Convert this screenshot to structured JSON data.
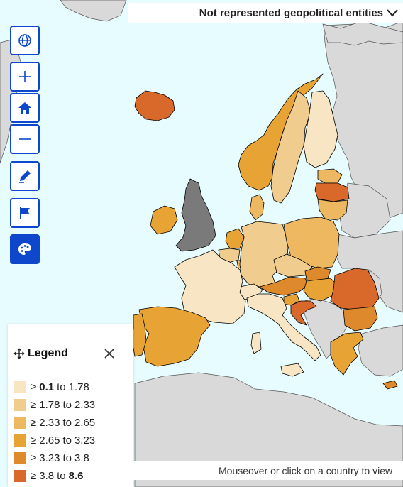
{
  "header": {
    "label": "Not represented geopolitical entities",
    "chevron_icon": "chevron-down-icon"
  },
  "toolbar": [
    {
      "id": "globe",
      "icon": "globe-icon",
      "filled": false
    },
    {
      "id": "zoom-in",
      "icon": "plus-icon",
      "filled": false
    },
    {
      "id": "home",
      "icon": "home-icon",
      "filled": true
    },
    {
      "id": "zoom-out",
      "icon": "minus-icon",
      "filled": false
    },
    {
      "id": "edit",
      "icon": "pencil-icon",
      "filled": false
    },
    {
      "id": "flag",
      "icon": "flag-icon",
      "filled": false
    },
    {
      "id": "palette",
      "icon": "palette-icon",
      "filled": true
    }
  ],
  "legend": {
    "title": "Legend",
    "move_icon": "move-icon",
    "close_icon": "close-icon",
    "classes": [
      {
        "prefix": "≥",
        "from": "0.1",
        "from_bold": true,
        "to_word": "to",
        "to": "1.78",
        "to_bold": false,
        "color": "#f8e5c4"
      },
      {
        "prefix": "≥",
        "from": "1.78",
        "from_bold": false,
        "to_word": "to",
        "to": "2.33",
        "to_bold": false,
        "color": "#f0cc8e"
      },
      {
        "prefix": "≥",
        "from": "2.33",
        "from_bold": false,
        "to_word": "to",
        "to": "2.65",
        "to_bold": false,
        "color": "#edb85f"
      },
      {
        "prefix": "≥",
        "from": "2.65",
        "from_bold": false,
        "to_word": "to",
        "to": "3.23",
        "to_bold": false,
        "color": "#e7a434"
      },
      {
        "prefix": "≥",
        "from": "3.23",
        "from_bold": false,
        "to_word": "to",
        "to": "3.8",
        "to_bold": false,
        "color": "#de8a2c"
      },
      {
        "prefix": "≥",
        "from": "3.8",
        "from_bold": false,
        "to_word": "to",
        "to": "8.6",
        "to_bold": true,
        "color": "#d8692b"
      }
    ]
  },
  "map": {
    "sea_color": "#e6fcff",
    "nodata_color": "#d9d9d9",
    "not_represented_color": "#7a7a7a",
    "regions": [
      {
        "name": "iceland",
        "class": 5
      },
      {
        "name": "norway",
        "class": 3
      },
      {
        "name": "sweden",
        "class": 1
      },
      {
        "name": "finland",
        "class": 0
      },
      {
        "name": "estonia",
        "class": 2
      },
      {
        "name": "latvia",
        "class": 5
      },
      {
        "name": "lithuania",
        "class": 2
      },
      {
        "name": "denmark",
        "class": 2
      },
      {
        "name": "ireland",
        "class": 3
      },
      {
        "name": "united-kingdom",
        "class": "not-represented"
      },
      {
        "name": "netherlands",
        "class": 3
      },
      {
        "name": "belgium",
        "class": 1
      },
      {
        "name": "luxembourg",
        "class": 2
      },
      {
        "name": "germany",
        "class": 1
      },
      {
        "name": "poland",
        "class": 2
      },
      {
        "name": "czechia",
        "class": 1
      },
      {
        "name": "slovakia",
        "class": 4
      },
      {
        "name": "austria",
        "class": 4
      },
      {
        "name": "switzerland",
        "class": 0
      },
      {
        "name": "hungary",
        "class": 3
      },
      {
        "name": "slovenia",
        "class": 3
      },
      {
        "name": "croatia",
        "class": 5
      },
      {
        "name": "romania",
        "class": 5
      },
      {
        "name": "bulgaria",
        "class": 4
      },
      {
        "name": "greece",
        "class": 3
      },
      {
        "name": "cyprus",
        "class": 4
      },
      {
        "name": "italy",
        "class": 0
      },
      {
        "name": "france",
        "class": 0
      },
      {
        "name": "spain",
        "class": 3
      },
      {
        "name": "portugal",
        "class": 3
      },
      {
        "name": "malta",
        "class": 0
      }
    ]
  },
  "status": {
    "text": "Mouseover or click on a country to view"
  }
}
